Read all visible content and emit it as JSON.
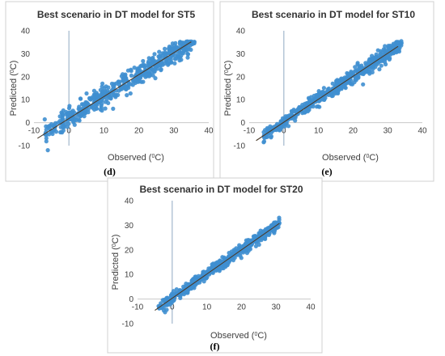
{
  "chart_data": [
    {
      "type": "scatter",
      "title": "Best scenario in DT model for ST5",
      "caption": "(d)",
      "xlabel_main": "Observed (",
      "ylabel_main": "Predicted (",
      "unit_sup": "0",
      "unit_tail": "C)",
      "xlim": [
        -10,
        40
      ],
      "ylim": [
        -10,
        40
      ],
      "xticks": [
        "-10",
        "0",
        "10",
        "20",
        "30",
        "40"
      ],
      "yticks": [
        "-10",
        "0",
        "10",
        "20",
        "30",
        "40"
      ],
      "trend": {
        "x": [
          -9,
          35
        ],
        "y": [
          -6.8,
          35.2
        ]
      },
      "x_range": [
        -7,
        36
      ],
      "spread": 2.3,
      "point_color": "#3f8fd0",
      "trend_color": "#4a3a2a"
    },
    {
      "type": "scatter",
      "title": "Best scenario in DT model for ST10",
      "caption": "(e)",
      "xlabel_main": "Observed (",
      "ylabel_main": "Predicted (",
      "unit_sup": "0",
      "unit_tail": "C)",
      "xlim": [
        -10,
        40
      ],
      "ylim": [
        -10,
        40
      ],
      "xticks": [
        "-10",
        "0",
        "10",
        "20",
        "30",
        "40"
      ],
      "yticks": [
        "-10",
        "0",
        "10",
        "20",
        "30",
        "40"
      ],
      "trend": {
        "x": [
          -8,
          33
        ],
        "y": [
          -7.8,
          33.2
        ]
      },
      "x_range": [
        -6,
        34
      ],
      "spread": 1.6,
      "point_color": "#3f8fd0",
      "trend_color": "#4a3a2a"
    },
    {
      "type": "scatter",
      "title": "Best scenario in DT model for ST20",
      "caption": "(f)",
      "xlabel_main": "Observed (",
      "ylabel_main": "Predicted (",
      "unit_sup": "0",
      "unit_tail": "C)",
      "xlim": [
        -10,
        40
      ],
      "ylim": [
        -10,
        40
      ],
      "xticks": [
        "-10",
        "0",
        "10",
        "20",
        "30",
        "40"
      ],
      "yticks": [
        "-10",
        "0",
        "10",
        "20",
        "30",
        "40"
      ],
      "trend": {
        "x": [
          -5,
          31
        ],
        "y": [
          -4.6,
          30.8
        ]
      },
      "x_range": [
        -4,
        31
      ],
      "spread": 1.1,
      "point_color": "#3f8fd0",
      "trend_color": "#4a3a2a"
    }
  ]
}
